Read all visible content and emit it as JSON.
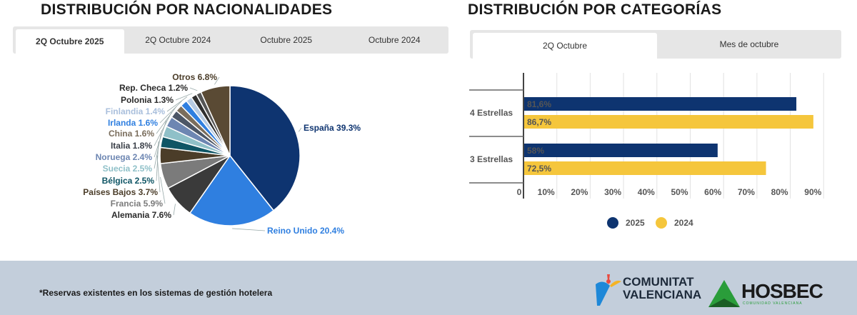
{
  "left": {
    "title": "DISTRIBUCIÓN POR NACIONALIDADES",
    "tabs": [
      {
        "label": "2Q Octubre 2025",
        "active": true
      },
      {
        "label": "2Q Octubre 2024"
      },
      {
        "label": "Octubre 2025"
      },
      {
        "label": "Octubre 2024"
      }
    ]
  },
  "right": {
    "title": "DISTRIBUCIÓN POR CATEGORÍAS",
    "tabs": [
      {
        "label": "2Q Octubre",
        "active": true
      },
      {
        "label": "Mes de octubre"
      }
    ]
  },
  "chart_data": [
    {
      "type": "pie",
      "slices": [
        {
          "label": "España 39.3%",
          "name": "España",
          "value": 39.3,
          "color": "#0e3470",
          "label_color": "#0e3470"
        },
        {
          "label": "Reino Unido 20.4%",
          "name": "Reino Unido",
          "value": 20.4,
          "color": "#2f7fe0",
          "label_color": "#2f7fe0"
        },
        {
          "label": "Alemania 7.6%",
          "name": "Alemania",
          "value": 7.6,
          "color": "#3a3a3a",
          "label_color": "#2a2a2a"
        },
        {
          "label": "Francia 5.9%",
          "name": "Francia",
          "value": 5.9,
          "color": "#7b7b7b",
          "label_color": "#7b7b7b"
        },
        {
          "label": "Países Bajos 3.7%",
          "name": "Países Bajos",
          "value": 3.7,
          "color": "#4b3d29",
          "label_color": "#4b3d29"
        },
        {
          "label": "Bélgica 2.5%",
          "name": "Bélgica",
          "value": 2.5,
          "color": "#0f5565",
          "label_color": "#0f5565"
        },
        {
          "label": "Suecia 2.5%",
          "name": "Suecia",
          "value": 2.5,
          "color": "#8fc0c8",
          "label_color": "#8fc0c8"
        },
        {
          "label": "Noruega 2.4%",
          "name": "Noruega",
          "value": 2.4,
          "color": "#6d86b2",
          "label_color": "#6d86b2"
        },
        {
          "label": "Italia 1.8%",
          "name": "Italia",
          "value": 1.8,
          "color": "#4c5666",
          "label_color": "#3a3f48"
        },
        {
          "label": "China 1.6%",
          "name": "China",
          "value": 1.6,
          "color": "#7a6d5c",
          "label_color": "#7a6d5c"
        },
        {
          "label": "Irlanda 1.6%",
          "name": "Irlanda",
          "value": 1.6,
          "color": "#2f7fe0",
          "label_color": "#2f7fe0"
        },
        {
          "label": "Finlandia 1.4%",
          "name": "Finlandia",
          "value": 1.4,
          "color": "#b7cbe3",
          "label_color": "#a9bfdc"
        },
        {
          "label": "Polonia 1.3%",
          "name": "Polonia",
          "value": 1.3,
          "color": "#2f2f2f",
          "label_color": "#2a2a2a"
        },
        {
          "label": "Rep. Checa 1.2%",
          "name": "Rep. Checa",
          "value": 1.2,
          "color": "#555555",
          "label_color": "#2a2a2a"
        },
        {
          "label": "Otros 6.8%",
          "name": "Otros",
          "value": 6.8,
          "color": "#5a4a34",
          "label_color": "#4b3d29"
        }
      ]
    },
    {
      "type": "bar",
      "orientation": "horizontal",
      "categories": [
        "4 Estrellas",
        "3 Estrellas"
      ],
      "series": [
        {
          "name": "2025",
          "values": [
            81.6,
            58
          ],
          "labels": [
            "81,6%",
            "58%"
          ],
          "color": "#0e3470"
        },
        {
          "name": "2024",
          "values": [
            86.7,
            72.5
          ],
          "labels": [
            "86,7%",
            "72,5%"
          ],
          "color": "#f5c63c"
        }
      ],
      "xlim": [
        0,
        90
      ],
      "tick_labels": [
        "0",
        "10%",
        "20%",
        "30%",
        "40%",
        "50%",
        "60%",
        "70%",
        "80%",
        "90%"
      ],
      "grid": true,
      "legend": "bottom"
    }
  ],
  "footer": {
    "note": "*Reservas existentes en los sistemas de gestión hotelera",
    "logo1": "COMUNITAT VALENCIANA",
    "logo2": "HOSBEC",
    "logo2_sub": "COMUNIDAD VALENCIANA"
  }
}
